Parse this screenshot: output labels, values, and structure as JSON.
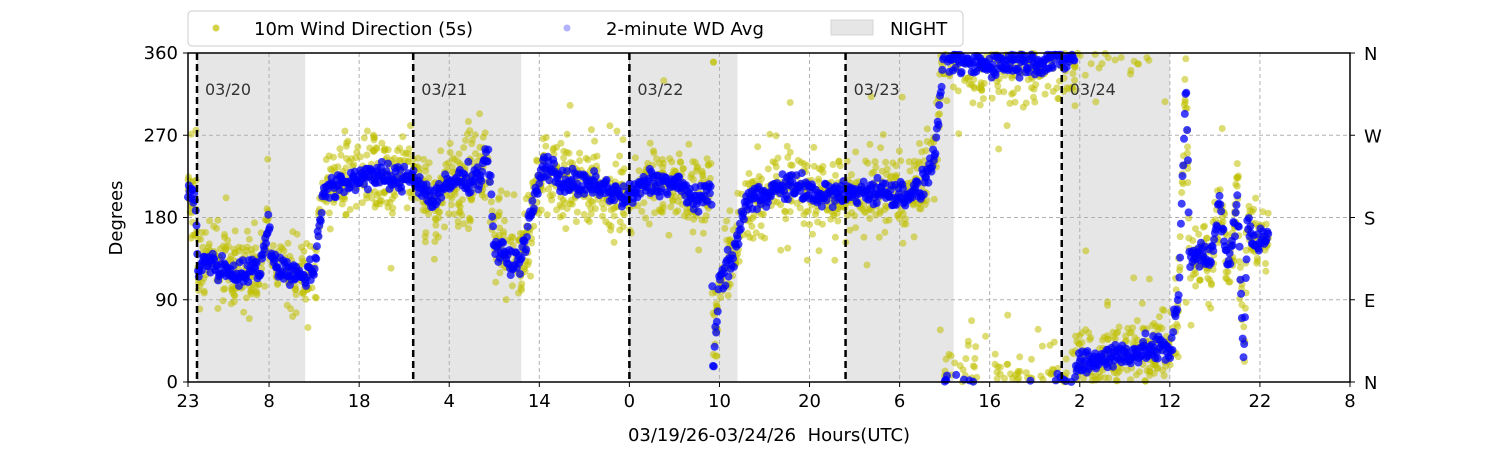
{
  "chart_data": {
    "type": "scatter",
    "xlabel": "03/19/26-03/24/26  Hours(UTC)",
    "ylabel": "Degrees",
    "x_units": "hours since 03/19 23:00 UTC",
    "xlim": [
      0,
      129
    ],
    "ylim": [
      0,
      360
    ],
    "x_ticks": [
      {
        "h": 0,
        "label": "23"
      },
      {
        "h": 9,
        "label": "8"
      },
      {
        "h": 19,
        "label": "18"
      },
      {
        "h": 29,
        "label": "4"
      },
      {
        "h": 39,
        "label": "14"
      },
      {
        "h": 49,
        "label": "0"
      },
      {
        "h": 59,
        "label": "10"
      },
      {
        "h": 69,
        "label": "20"
      },
      {
        "h": 79,
        "label": "6"
      },
      {
        "h": 89,
        "label": "16"
      },
      {
        "h": 99,
        "label": "2"
      },
      {
        "h": 109,
        "label": "12"
      },
      {
        "h": 119,
        "label": "22"
      },
      {
        "h": 129,
        "label": "8"
      }
    ],
    "y_ticks": [
      0,
      90,
      180,
      270,
      360
    ],
    "y_ticks_right": [
      {
        "v": 0,
        "label": "N"
      },
      {
        "v": 90,
        "label": "E"
      },
      {
        "v": 180,
        "label": "S"
      },
      {
        "v": 270,
        "label": "W"
      },
      {
        "v": 360,
        "label": "N"
      }
    ],
    "grid": true,
    "legend": {
      "placement": "top",
      "entries": [
        {
          "label": "10m Wind Direction (5s)",
          "color": "#bfbf00"
        },
        {
          "label": "2-minute WD Avg",
          "color": "#0000ff"
        },
        {
          "label": "NIGHT",
          "color": "#e6e6e6"
        }
      ]
    },
    "night_periods": [
      [
        1,
        13
      ],
      [
        25,
        37
      ],
      [
        49,
        61
      ],
      [
        73,
        85
      ],
      [
        97,
        109
      ]
    ],
    "day_markers": [
      {
        "h": 1,
        "label": "03/20"
      },
      {
        "h": 25,
        "label": "03/21"
      },
      {
        "h": 49,
        "label": "03/22"
      },
      {
        "h": 73,
        "label": "03/23"
      },
      {
        "h": 97,
        "label": "03/24"
      }
    ],
    "series": [
      {
        "name": "2-minute WD Avg",
        "color": "#0000ff",
        "points": [
          [
            0,
            210
          ],
          [
            0.8,
            200
          ],
          [
            1.1,
            120
          ],
          [
            1.6,
            135
          ],
          [
            3.5,
            125
          ],
          [
            5.8,
            118
          ],
          [
            8,
            125
          ],
          [
            8.6,
            150
          ],
          [
            8.9,
            180
          ],
          [
            9.3,
            140
          ],
          [
            9.8,
            128
          ],
          [
            12.4,
            115
          ],
          [
            14,
            122
          ],
          [
            15,
            210
          ],
          [
            17,
            215
          ],
          [
            19.8,
            228
          ],
          [
            23.5,
            220
          ],
          [
            24.8,
            228
          ],
          [
            27,
            200
          ],
          [
            29.6,
            220
          ],
          [
            32.4,
            225
          ],
          [
            33.3,
            255
          ],
          [
            34,
            150
          ],
          [
            35.8,
            130
          ],
          [
            37,
            135
          ],
          [
            38,
            180
          ],
          [
            39.5,
            240
          ],
          [
            41.3,
            222
          ],
          [
            43.5,
            215
          ],
          [
            45.7,
            215
          ],
          [
            48.6,
            200
          ],
          [
            51.3,
            220
          ],
          [
            54.6,
            215
          ],
          [
            56.8,
            195
          ],
          [
            58.1,
            215
          ],
          [
            58.3,
            15
          ],
          [
            59,
            110
          ],
          [
            60.7,
            140
          ],
          [
            61.8,
            195
          ],
          [
            64.6,
            210
          ],
          [
            68,
            215
          ],
          [
            69.3,
            205
          ],
          [
            72.4,
            205
          ],
          [
            75.7,
            210
          ],
          [
            79,
            205
          ],
          [
            81.3,
            210
          ],
          [
            83,
            250
          ],
          [
            83.5,
            320
          ],
          [
            84,
            352
          ],
          [
            89,
            348
          ],
          [
            95.7,
            352
          ],
          [
            98,
            355
          ],
          [
            99,
            20
          ],
          [
            102,
            28
          ],
          [
            105,
            32
          ],
          [
            108,
            38
          ],
          [
            109,
            30
          ],
          [
            110,
            100
          ],
          [
            110.8,
            340
          ],
          [
            111.2,
            130
          ],
          [
            112.3,
            140
          ],
          [
            113.5,
            130
          ],
          [
            114.5,
            200
          ],
          [
            115.5,
            120
          ],
          [
            116.5,
            200
          ],
          [
            117.2,
            20
          ],
          [
            117.6,
            180
          ],
          [
            118.5,
            150
          ],
          [
            119.8,
            160
          ],
          [
            120,
            170
          ]
        ]
      },
      {
        "name": "10m Wind Direction (5s)",
        "color": "#bfbf00",
        "note": "5-second samples scattered about the 2-minute average",
        "spread_deg": 30
      }
    ]
  }
}
